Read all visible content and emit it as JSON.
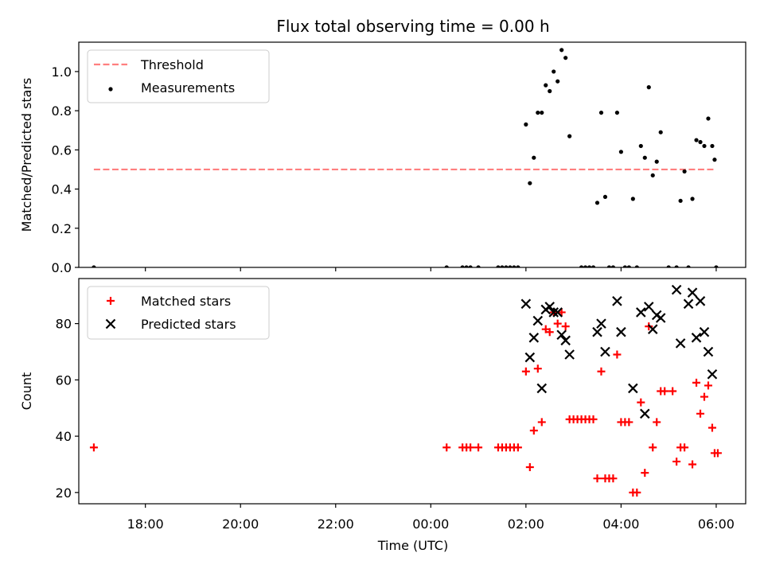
{
  "chart_data": {
    "type": "scatter",
    "title": "Flux total observing time = 0.00 h",
    "xlabel": "Time (UTC)",
    "x_tick_labels": [
      "18:00",
      "20:00",
      "22:00",
      "00:00",
      "02:00",
      "04:00",
      "06:00"
    ],
    "panels": [
      {
        "name": "ratio",
        "ylabel": "Matched/Predicted stars",
        "ylim": [
          0,
          1.15
        ],
        "yticks": [
          0.0,
          0.2,
          0.4,
          0.6,
          0.8,
          1.0
        ],
        "ytick_labels": [
          "0.0",
          "0.2",
          "0.4",
          "0.6",
          "0.8",
          "1.0"
        ],
        "legend_position": "upper-left",
        "threshold": {
          "label": "Threshold",
          "value": 0.5,
          "x_start": "16:55",
          "x_end": "05:58",
          "color": "#ff7f7f"
        },
        "series": [
          {
            "name": "Measurements",
            "color": "#000000",
            "marker": "dot",
            "points": [
              [
                "16:55",
                0.0
              ],
              [
                "00:20",
                0.0
              ],
              [
                "00:40",
                0.0
              ],
              [
                "00:45",
                0.0
              ],
              [
                "00:50",
                0.0
              ],
              [
                "01:00",
                0.0
              ],
              [
                "01:25",
                0.0
              ],
              [
                "01:30",
                0.0
              ],
              [
                "01:35",
                0.0
              ],
              [
                "01:40",
                0.0
              ],
              [
                "01:45",
                0.0
              ],
              [
                "01:50",
                0.0
              ],
              [
                "02:00",
                0.73
              ],
              [
                "02:05",
                0.43
              ],
              [
                "02:10",
                0.56
              ],
              [
                "02:15",
                0.79
              ],
              [
                "02:20",
                0.79
              ],
              [
                "02:25",
                0.93
              ],
              [
                "02:30",
                0.9
              ],
              [
                "02:35",
                1.0
              ],
              [
                "02:40",
                0.95
              ],
              [
                "02:45",
                1.11
              ],
              [
                "02:50",
                1.07
              ],
              [
                "02:55",
                0.67
              ],
              [
                "03:10",
                0.0
              ],
              [
                "03:15",
                0.0
              ],
              [
                "03:20",
                0.0
              ],
              [
                "03:25",
                0.0
              ],
              [
                "03:30",
                0.33
              ],
              [
                "03:35",
                0.79
              ],
              [
                "03:40",
                0.36
              ],
              [
                "03:45",
                0.0
              ],
              [
                "03:50",
                0.0
              ],
              [
                "03:55",
                0.79
              ],
              [
                "04:00",
                0.59
              ],
              [
                "04:05",
                0.0
              ],
              [
                "04:10",
                0.0
              ],
              [
                "04:15",
                0.35
              ],
              [
                "04:20",
                0.0
              ],
              [
                "04:25",
                0.62
              ],
              [
                "04:30",
                0.56
              ],
              [
                "04:35",
                0.92
              ],
              [
                "04:40",
                0.47
              ],
              [
                "04:45",
                0.54
              ],
              [
                "04:50",
                0.69
              ],
              [
                "05:00",
                0.0
              ],
              [
                "05:10",
                0.0
              ],
              [
                "05:15",
                0.34
              ],
              [
                "05:20",
                0.49
              ],
              [
                "05:25",
                0.0
              ],
              [
                "05:30",
                0.35
              ],
              [
                "05:35",
                0.65
              ],
              [
                "05:40",
                0.64
              ],
              [
                "05:45",
                0.62
              ],
              [
                "05:50",
                0.76
              ],
              [
                "05:55",
                0.62
              ],
              [
                "05:58",
                0.55
              ],
              [
                "06:00",
                0.0
              ]
            ]
          }
        ]
      },
      {
        "name": "counts",
        "ylabel": "Count",
        "ylim": [
          16,
          96
        ],
        "yticks": [
          20,
          40,
          60,
          80
        ],
        "ytick_labels": [
          "20",
          "40",
          "60",
          "80"
        ],
        "legend_position": "upper-left",
        "series": [
          {
            "name": "Matched stars",
            "color": "#ff0000",
            "marker": "plus",
            "points": [
              [
                "16:55",
                36
              ],
              [
                "00:20",
                36
              ],
              [
                "00:40",
                36
              ],
              [
                "00:45",
                36
              ],
              [
                "00:50",
                36
              ],
              [
                "01:00",
                36
              ],
              [
                "01:25",
                36
              ],
              [
                "01:30",
                36
              ],
              [
                "01:35",
                36
              ],
              [
                "01:40",
                36
              ],
              [
                "01:45",
                36
              ],
              [
                "01:50",
                36
              ],
              [
                "02:00",
                63
              ],
              [
                "02:05",
                29
              ],
              [
                "02:10",
                42
              ],
              [
                "02:15",
                64
              ],
              [
                "02:20",
                45
              ],
              [
                "02:25",
                78
              ],
              [
                "02:30",
                77
              ],
              [
                "02:35",
                84
              ],
              [
                "02:40",
                80
              ],
              [
                "02:45",
                84
              ],
              [
                "02:50",
                79
              ],
              [
                "02:55",
                46
              ],
              [
                "03:00",
                46
              ],
              [
                "03:05",
                46
              ],
              [
                "03:10",
                46
              ],
              [
                "03:15",
                46
              ],
              [
                "03:20",
                46
              ],
              [
                "03:25",
                46
              ],
              [
                "03:30",
                25
              ],
              [
                "03:35",
                63
              ],
              [
                "03:40",
                25
              ],
              [
                "03:45",
                25
              ],
              [
                "03:50",
                25
              ],
              [
                "03:55",
                69
              ],
              [
                "04:00",
                45
              ],
              [
                "04:05",
                45
              ],
              [
                "04:10",
                45
              ],
              [
                "04:15",
                20
              ],
              [
                "04:20",
                20
              ],
              [
                "04:25",
                52
              ],
              [
                "04:30",
                27
              ],
              [
                "04:35",
                79
              ],
              [
                "04:40",
                36
              ],
              [
                "04:45",
                45
              ],
              [
                "04:50",
                56
              ],
              [
                "04:55",
                56
              ],
              [
                "05:05",
                56
              ],
              [
                "05:10",
                31
              ],
              [
                "05:15",
                36
              ],
              [
                "05:20",
                36
              ],
              [
                "05:30",
                30
              ],
              [
                "05:35",
                59
              ],
              [
                "05:40",
                48
              ],
              [
                "05:45",
                54
              ],
              [
                "05:50",
                58
              ],
              [
                "05:55",
                43
              ],
              [
                "05:58",
                34
              ],
              [
                "06:02",
                34
              ]
            ]
          },
          {
            "name": "Predicted stars",
            "color": "#000000",
            "marker": "x",
            "points": [
              [
                "02:00",
                87
              ],
              [
                "02:05",
                68
              ],
              [
                "02:10",
                75
              ],
              [
                "02:15",
                81
              ],
              [
                "02:20",
                57
              ],
              [
                "02:25",
                85
              ],
              [
                "02:30",
                86
              ],
              [
                "02:35",
                84
              ],
              [
                "02:40",
                84
              ],
              [
                "02:45",
                76
              ],
              [
                "02:50",
                74
              ],
              [
                "02:55",
                69
              ],
              [
                "03:30",
                77
              ],
              [
                "03:35",
                80
              ],
              [
                "03:40",
                70
              ],
              [
                "03:55",
                88
              ],
              [
                "04:00",
                77
              ],
              [
                "04:15",
                57
              ],
              [
                "04:25",
                84
              ],
              [
                "04:30",
                48
              ],
              [
                "04:35",
                86
              ],
              [
                "04:40",
                78
              ],
              [
                "04:45",
                83
              ],
              [
                "04:50",
                82
              ],
              [
                "05:10",
                92
              ],
              [
                "05:15",
                73
              ],
              [
                "05:25",
                87
              ],
              [
                "05:30",
                91
              ],
              [
                "05:35",
                75
              ],
              [
                "05:40",
                88
              ],
              [
                "05:45",
                77
              ],
              [
                "05:50",
                70
              ],
              [
                "05:55",
                62
              ]
            ]
          }
        ]
      }
    ]
  }
}
